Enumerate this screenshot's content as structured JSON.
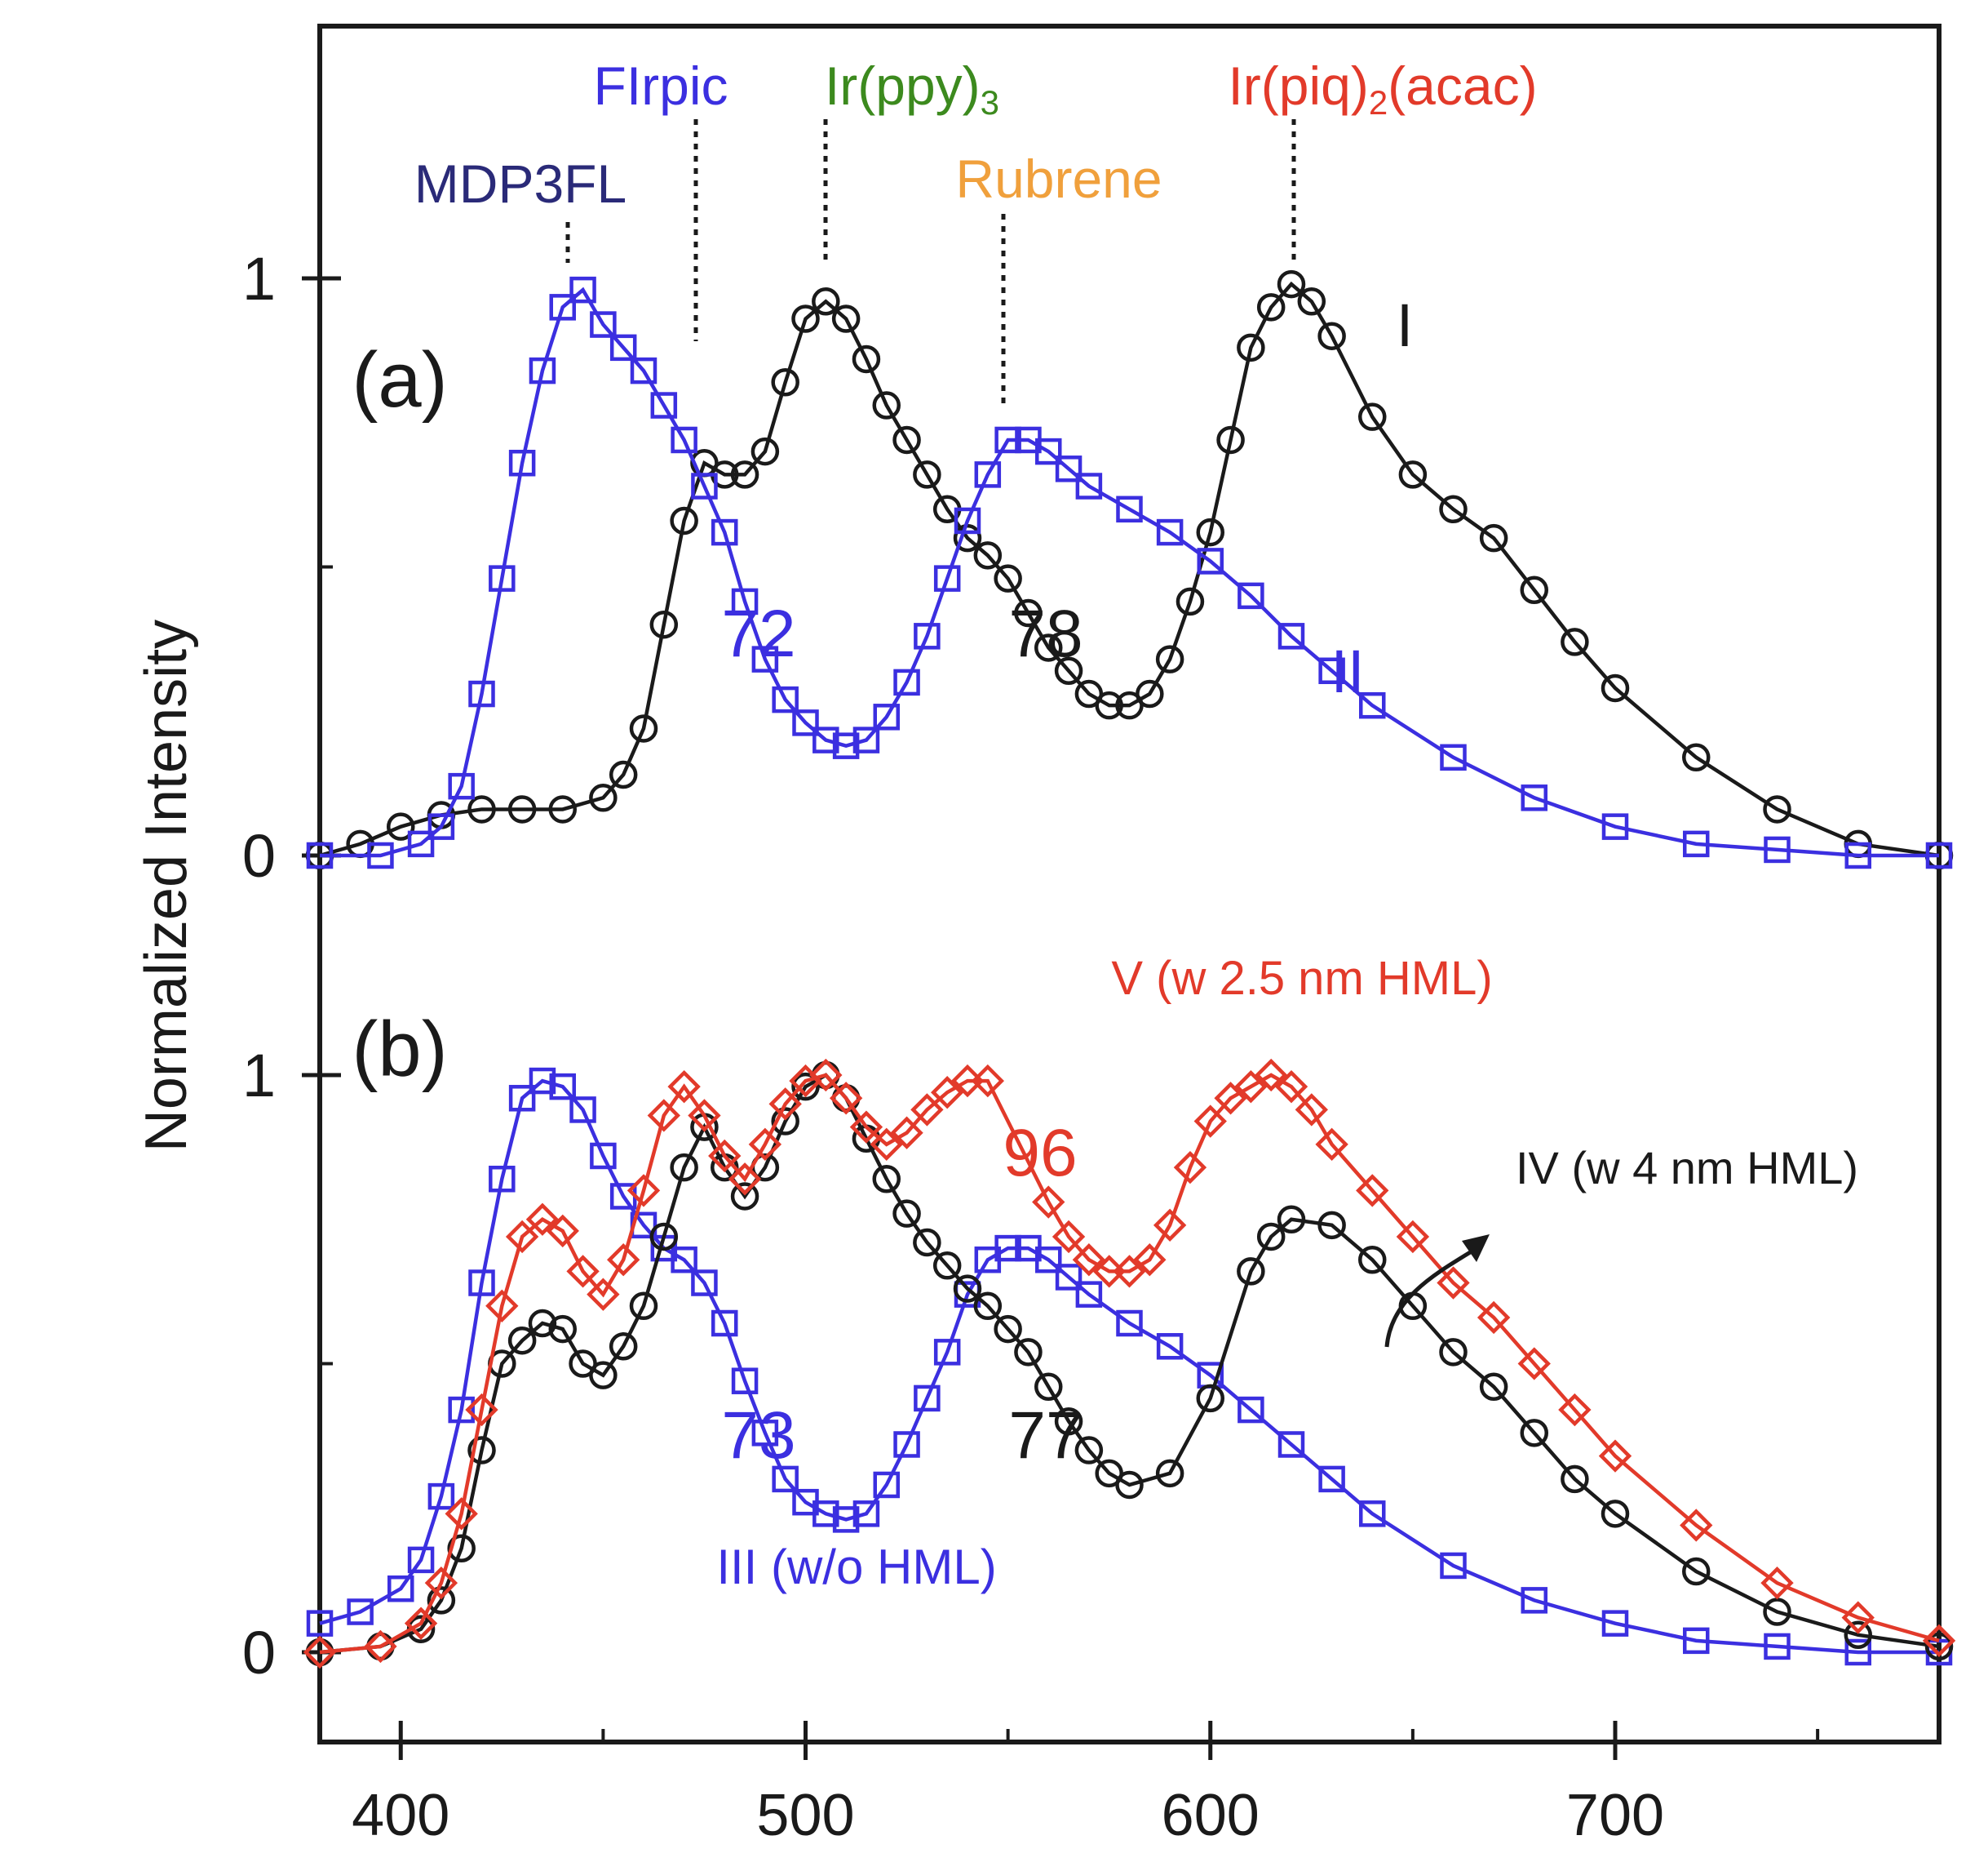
{
  "chart_data": {
    "type": "line",
    "ylabel": "Normalized Intensity",
    "xlim": [
      380,
      780
    ],
    "x_ticks": [
      400,
      500,
      600,
      700
    ],
    "x_minor_ticks": [
      450,
      550,
      650,
      750
    ],
    "colors": {
      "blue": "#3b2fe0",
      "black": "#1a1a1a",
      "red": "#e23a2a",
      "green": "#3c8a1e",
      "orange": "#f0a03c",
      "navy": "#2a2a78"
    },
    "panels": [
      {
        "id": "a",
        "label": "(a)",
        "y_ticks": [
          "0",
          "1"
        ],
        "emitters": [
          {
            "name": "MDP3FL",
            "wavelength": 441,
            "color": "navy"
          },
          {
            "name": "FIrpic",
            "wavelength": 472,
            "color": "blue"
          },
          {
            "name": "Ir(ppy)",
            "subscript": "3",
            "wavelength": 504,
            "color": "green"
          },
          {
            "name": "Rubrene",
            "wavelength": 550,
            "color": "orange"
          },
          {
            "name": "Ir(piq)",
            "subscript": "2",
            "suffix": "(acac)",
            "wavelength": 619,
            "color": "red"
          }
        ],
        "series": [
          {
            "name": "I",
            "label": "I",
            "color": "black",
            "marker": "circle",
            "x": [
              380,
              390,
              400,
              410,
              420,
              430,
              440,
              450,
              455,
              460,
              465,
              470,
              475,
              480,
              485,
              490,
              495,
              500,
              505,
              510,
              515,
              520,
              525,
              530,
              535,
              540,
              545,
              550,
              555,
              560,
              565,
              570,
              575,
              580,
              585,
              590,
              595,
              600,
              605,
              610,
              615,
              620,
              625,
              630,
              640,
              650,
              660,
              670,
              680,
              690,
              700,
              720,
              740,
              760,
              780
            ],
            "y": [
              0.0,
              0.02,
              0.05,
              0.07,
              0.08,
              0.08,
              0.08,
              0.1,
              0.14,
              0.22,
              0.4,
              0.58,
              0.68,
              0.66,
              0.66,
              0.7,
              0.82,
              0.93,
              0.96,
              0.93,
              0.86,
              0.78,
              0.72,
              0.66,
              0.6,
              0.55,
              0.52,
              0.48,
              0.42,
              0.36,
              0.32,
              0.28,
              0.26,
              0.26,
              0.28,
              0.34,
              0.44,
              0.56,
              0.72,
              0.88,
              0.95,
              0.99,
              0.96,
              0.9,
              0.76,
              0.66,
              0.6,
              0.55,
              0.46,
              0.37,
              0.29,
              0.17,
              0.08,
              0.02,
              0.0
            ]
          },
          {
            "name": "II",
            "label": "II",
            "color": "blue",
            "marker": "square",
            "x": [
              380,
              395,
              405,
              410,
              415,
              420,
              425,
              430,
              435,
              440,
              445,
              450,
              455,
              460,
              465,
              470,
              475,
              480,
              485,
              490,
              495,
              500,
              505,
              510,
              515,
              520,
              525,
              530,
              535,
              540,
              545,
              550,
              555,
              560,
              565,
              570,
              580,
              590,
              600,
              610,
              620,
              630,
              640,
              660,
              680,
              700,
              720,
              740,
              760,
              780
            ],
            "y": [
              0.0,
              0.0,
              0.02,
              0.05,
              0.12,
              0.28,
              0.48,
              0.68,
              0.84,
              0.95,
              0.98,
              0.92,
              0.88,
              0.84,
              0.78,
              0.72,
              0.64,
              0.56,
              0.44,
              0.34,
              0.27,
              0.23,
              0.2,
              0.19,
              0.2,
              0.24,
              0.3,
              0.38,
              0.48,
              0.58,
              0.66,
              0.72,
              0.72,
              0.7,
              0.67,
              0.64,
              0.6,
              0.56,
              0.51,
              0.45,
              0.38,
              0.32,
              0.26,
              0.17,
              0.1,
              0.05,
              0.02,
              0.01,
              0.0,
              0.0
            ]
          }
        ],
        "annotations": [
          {
            "text": "72",
            "color": "blue"
          },
          {
            "text": "78",
            "color": "black"
          }
        ]
      },
      {
        "id": "b",
        "label": "(b)",
        "y_ticks": [
          "0",
          "1"
        ],
        "series": [
          {
            "name": "III",
            "label": "III (w/o HML)",
            "color": "blue",
            "marker": "square",
            "x": [
              380,
              390,
              400,
              405,
              410,
              415,
              420,
              425,
              430,
              435,
              440,
              445,
              450,
              455,
              460,
              465,
              470,
              475,
              480,
              485,
              490,
              495,
              500,
              505,
              510,
              515,
              520,
              525,
              530,
              535,
              540,
              545,
              550,
              555,
              560,
              565,
              570,
              580,
              590,
              600,
              610,
              620,
              630,
              640,
              660,
              680,
              700,
              720,
              740,
              760,
              780
            ],
            "y": [
              0.05,
              0.07,
              0.11,
              0.16,
              0.27,
              0.42,
              0.64,
              0.82,
              0.96,
              0.99,
              0.98,
              0.94,
              0.86,
              0.79,
              0.74,
              0.7,
              0.68,
              0.64,
              0.57,
              0.47,
              0.38,
              0.3,
              0.26,
              0.24,
              0.23,
              0.24,
              0.29,
              0.36,
              0.44,
              0.52,
              0.62,
              0.68,
              0.7,
              0.7,
              0.68,
              0.65,
              0.62,
              0.57,
              0.53,
              0.48,
              0.42,
              0.36,
              0.3,
              0.24,
              0.15,
              0.09,
              0.05,
              0.02,
              0.01,
              0.0,
              0.0
            ]
          },
          {
            "name": "IV",
            "label": "IV (w 4 nm HML)",
            "color": "black",
            "marker": "circle",
            "x": [
              380,
              395,
              405,
              410,
              415,
              420,
              425,
              430,
              435,
              440,
              445,
              450,
              455,
              460,
              465,
              470,
              475,
              480,
              485,
              490,
              495,
              500,
              505,
              510,
              515,
              520,
              525,
              530,
              535,
              540,
              545,
              550,
              555,
              560,
              565,
              570,
              575,
              580,
              590,
              600,
              610,
              615,
              620,
              630,
              640,
              650,
              660,
              670,
              680,
              690,
              700,
              720,
              740,
              760,
              780
            ],
            "y": [
              0.0,
              0.01,
              0.04,
              0.09,
              0.18,
              0.35,
              0.5,
              0.54,
              0.57,
              0.56,
              0.5,
              0.48,
              0.53,
              0.6,
              0.72,
              0.84,
              0.91,
              0.84,
              0.79,
              0.84,
              0.92,
              0.98,
              1.0,
              0.96,
              0.89,
              0.82,
              0.76,
              0.71,
              0.67,
              0.63,
              0.6,
              0.56,
              0.52,
              0.46,
              0.4,
              0.35,
              0.31,
              0.29,
              0.31,
              0.44,
              0.66,
              0.72,
              0.75,
              0.74,
              0.68,
              0.6,
              0.52,
              0.46,
              0.38,
              0.3,
              0.24,
              0.14,
              0.07,
              0.03,
              0.01
            ]
          },
          {
            "name": "V",
            "label": "V (w 2.5 nm HML)",
            "color": "red",
            "marker": "diamond",
            "x": [
              380,
              395,
              405,
              410,
              415,
              420,
              425,
              430,
              435,
              440,
              445,
              450,
              455,
              460,
              465,
              470,
              475,
              480,
              485,
              490,
              495,
              500,
              505,
              510,
              515,
              520,
              525,
              530,
              535,
              540,
              545,
              560,
              565,
              570,
              575,
              580,
              585,
              590,
              595,
              600,
              605,
              610,
              615,
              620,
              625,
              630,
              640,
              650,
              660,
              670,
              680,
              690,
              700,
              720,
              740,
              760,
              780
            ],
            "y": [
              0.0,
              0.01,
              0.05,
              0.12,
              0.24,
              0.42,
              0.6,
              0.72,
              0.75,
              0.73,
              0.66,
              0.62,
              0.68,
              0.8,
              0.93,
              0.98,
              0.93,
              0.86,
              0.82,
              0.88,
              0.95,
              0.99,
              1.0,
              0.96,
              0.91,
              0.88,
              0.9,
              0.94,
              0.97,
              0.99,
              0.99,
              0.78,
              0.72,
              0.68,
              0.66,
              0.66,
              0.68,
              0.74,
              0.84,
              0.92,
              0.96,
              0.98,
              1.0,
              0.98,
              0.94,
              0.88,
              0.8,
              0.72,
              0.64,
              0.58,
              0.5,
              0.42,
              0.34,
              0.22,
              0.12,
              0.06,
              0.02
            ]
          }
        ],
        "annotations": [
          {
            "text": "73",
            "color": "blue"
          },
          {
            "text": "77",
            "color": "black"
          },
          {
            "text": "96",
            "color": "red"
          }
        ]
      }
    ]
  }
}
